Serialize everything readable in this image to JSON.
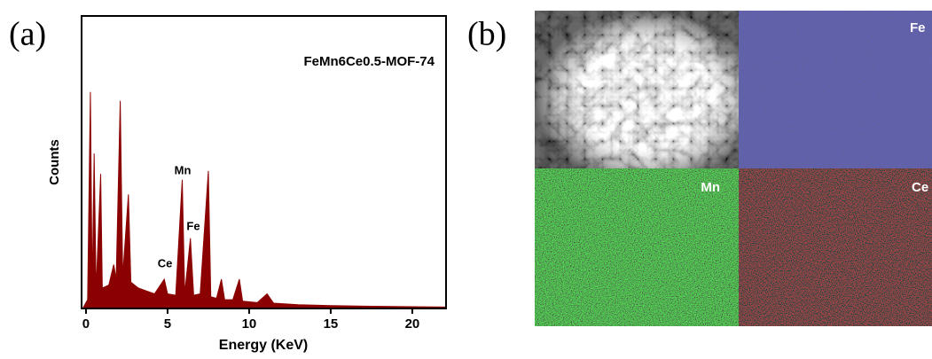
{
  "panel_labels": [
    "(a)",
    "(b)"
  ],
  "chart_data": {
    "type": "area",
    "annotation": "FeMn6Ce0.5-MOF-74",
    "peak_labels": [
      "Mn",
      "Fe",
      "Ce"
    ],
    "xlabel": "Energy (KeV)",
    "ylabel": "Counts",
    "color": "#8b0000",
    "x": [
      -0.2,
      0.1,
      0.27,
      0.38,
      0.5,
      0.62,
      0.9,
      1.0,
      1.4,
      1.7,
      1.85,
      2.1,
      2.25,
      2.6,
      2.75,
      3.2,
      3.7,
      4.2,
      4.8,
      5.0,
      5.5,
      5.9,
      6.05,
      6.4,
      6.6,
      7.0,
      7.5,
      7.65,
      8.0,
      8.3,
      8.5,
      9.0,
      9.4,
      9.6,
      10.5,
      11.1,
      11.5,
      13,
      15,
      17,
      20,
      22
    ],
    "values": [
      0,
      3,
      74,
      6,
      53,
      6,
      46,
      7,
      8,
      15,
      10,
      71,
      11,
      39,
      9,
      7,
      6,
      5,
      10,
      5,
      4.5,
      44,
      5,
      24,
      4.5,
      5,
      47,
      4,
      3.5,
      10,
      3,
      3,
      10,
      2.5,
      2,
      5,
      1.8,
      1.3,
      1,
      0.8,
      0.6,
      0.5
    ],
    "xlim": [
      -0.27,
      22.07
    ],
    "ylim": [
      0,
      100
    ],
    "xticks": [
      0,
      5,
      10,
      15,
      20
    ]
  },
  "maps": {
    "labels": [
      "Fe",
      "Mn",
      "Ce"
    ]
  }
}
